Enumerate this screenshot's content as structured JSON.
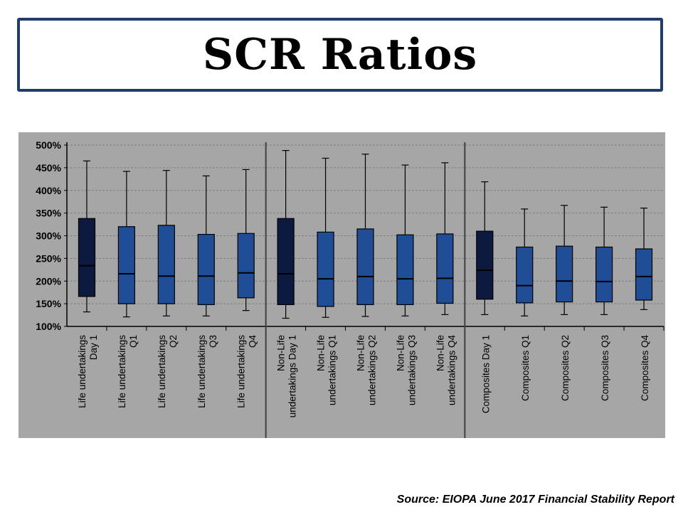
{
  "title": "SCR Ratios",
  "source": "Source:  EIOPA June 2017 Financial Stability Report",
  "chart_data": {
    "type": "boxplot",
    "ylim": [
      100,
      500
    ],
    "y_ticks": [
      "500%",
      "450%",
      "400%",
      "350%",
      "300%",
      "250%",
      "200%",
      "150%",
      "100%"
    ],
    "y_tick_values": [
      500,
      450,
      400,
      350,
      300,
      250,
      200,
      150,
      100
    ],
    "grid": true,
    "colors": {
      "day1_fill": "#0D1A40",
      "quarter_fill": "#1F4E96",
      "background": "#A6A6A6",
      "grid": "#7F7F7F"
    },
    "groups": [
      {
        "name": "Life undertakings",
        "boxes": [
          {
            "label": [
              "Life undertakings",
              "Day 1"
            ],
            "day1": true,
            "min": 132,
            "q1": 166,
            "median": 234,
            "q3": 338,
            "max": 465
          },
          {
            "label": [
              "Life undertakings",
              "Q1"
            ],
            "day1": false,
            "min": 121,
            "q1": 150,
            "median": 216,
            "q3": 320,
            "max": 442
          },
          {
            "label": [
              "Life undertakings",
              "Q2"
            ],
            "day1": false,
            "min": 123,
            "q1": 150,
            "median": 211,
            "q3": 323,
            "max": 444
          },
          {
            "label": [
              "Life undertakings",
              "Q3"
            ],
            "day1": false,
            "min": 123,
            "q1": 148,
            "median": 211,
            "q3": 303,
            "max": 432
          },
          {
            "label": [
              "Life undertakings",
              "Q4"
            ],
            "day1": false,
            "min": 135,
            "q1": 163,
            "median": 218,
            "q3": 305,
            "max": 446
          }
        ]
      },
      {
        "name": "Non-Life undertakings",
        "boxes": [
          {
            "label": [
              "Non-Life",
              "undertakings Day 1"
            ],
            "day1": true,
            "min": 118,
            "q1": 148,
            "median": 216,
            "q3": 338,
            "max": 488
          },
          {
            "label": [
              "Non-Life",
              "undertakings Q1"
            ],
            "day1": false,
            "min": 120,
            "q1": 144,
            "median": 205,
            "q3": 308,
            "max": 471
          },
          {
            "label": [
              "Non-Life",
              "undertakings Q2"
            ],
            "day1": false,
            "min": 122,
            "q1": 148,
            "median": 210,
            "q3": 315,
            "max": 480
          },
          {
            "label": [
              "Non-Life",
              "undertakings Q3"
            ],
            "day1": false,
            "min": 123,
            "q1": 148,
            "median": 205,
            "q3": 302,
            "max": 456
          },
          {
            "label": [
              "Non-Life",
              "undertakings Q4"
            ],
            "day1": false,
            "min": 126,
            "q1": 151,
            "median": 206,
            "q3": 304,
            "max": 461
          }
        ]
      },
      {
        "name": "Composites",
        "boxes": [
          {
            "label": [
              "Composites Day 1"
            ],
            "day1": true,
            "min": 126,
            "q1": 160,
            "median": 224,
            "q3": 310,
            "max": 419
          },
          {
            "label": [
              "Composites Q1"
            ],
            "day1": false,
            "min": 123,
            "q1": 152,
            "median": 190,
            "q3": 275,
            "max": 359
          },
          {
            "label": [
              "Composites Q2"
            ],
            "day1": false,
            "min": 126,
            "q1": 154,
            "median": 200,
            "q3": 277,
            "max": 367
          },
          {
            "label": [
              "Composites Q3"
            ],
            "day1": false,
            "min": 126,
            "q1": 154,
            "median": 199,
            "q3": 275,
            "max": 363
          },
          {
            "label": [
              "Composites Q4"
            ],
            "day1": false,
            "min": 137,
            "q1": 158,
            "median": 210,
            "q3": 271,
            "max": 361
          }
        ]
      }
    ]
  }
}
